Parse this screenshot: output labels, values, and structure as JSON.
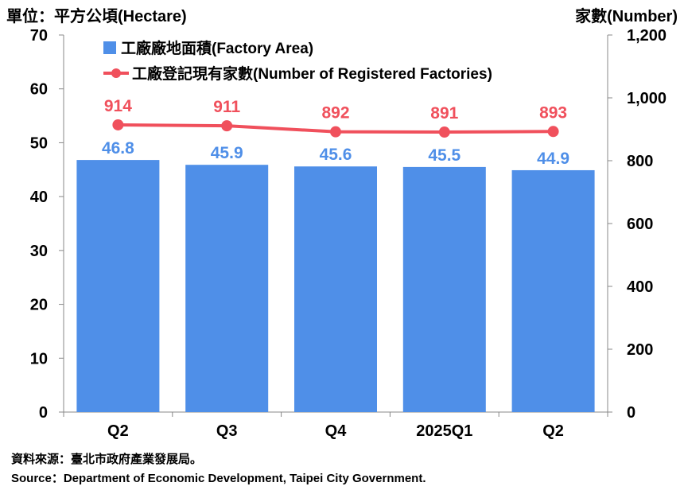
{
  "chart_data": {
    "type": "bar",
    "categories": [
      "Q2",
      "Q3",
      "Q4",
      "2025Q1",
      "Q2"
    ],
    "series": [
      {
        "name": "工廠廠地面積(Factory Area)",
        "type": "bar",
        "axis": "left",
        "color": "#4f8fe8",
        "label_color": "#4f8fe8",
        "values": [
          46.8,
          45.9,
          45.6,
          45.5,
          44.9
        ],
        "data_labels": [
          "46.8",
          "45.9",
          "45.6",
          "45.5",
          "44.9"
        ]
      },
      {
        "name": "工廠登記現有家數(Number of Registered Factories)",
        "type": "line",
        "axis": "right",
        "color": "#f0505c",
        "label_color": "#f0505c",
        "values": [
          914,
          911,
          892,
          891,
          893
        ],
        "data_labels": [
          "914",
          "911",
          "892",
          "891",
          "893"
        ]
      }
    ],
    "y_left": {
      "label": "單位：平方公頃(Hectare)",
      "range": [
        0,
        70
      ],
      "ticks": [
        "0",
        "10",
        "20",
        "30",
        "40",
        "50",
        "60",
        "70"
      ]
    },
    "y_right": {
      "label": "家數(Number)",
      "range": [
        0,
        1200
      ],
      "ticks": [
        "0",
        "200",
        "400",
        "600",
        "800",
        "1,000",
        "1,200"
      ]
    },
    "grid": false,
    "legend_position": "top-left"
  },
  "source": {
    "zh": "資料來源：臺北市政府產業發展局。",
    "en": "Source：Department of Economic Development, Taipei City Government."
  }
}
